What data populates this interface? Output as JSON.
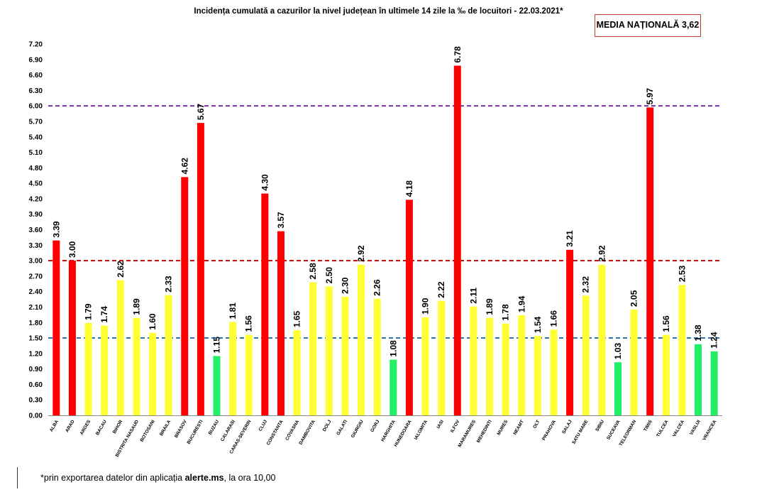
{
  "chart_data": {
    "type": "bar",
    "title": "Incidența cumulată a cazurilor la nivel județean în ultimele 14 zile la ‰ de locuitori - 22.03.2021*",
    "xlabel": "",
    "ylabel": "",
    "ylim": [
      0,
      7.2
    ],
    "yticks": [
      "0.00",
      "0.30",
      "0.60",
      "0.90",
      "1.20",
      "1.50",
      "1.80",
      "2.10",
      "2.40",
      "2.70",
      "3.00",
      "3.30",
      "3.60",
      "3.90",
      "4.20",
      "4.50",
      "4.80",
      "5.10",
      "5.40",
      "5.70",
      "6.00",
      "6.30",
      "6.60",
      "6.90",
      "7.20"
    ],
    "grid": false,
    "categories": [
      "ALBA",
      "ARAD",
      "ARGES",
      "BACAU",
      "BIHOR",
      "BISTRITA NASAUD",
      "BOTOSANI",
      "BRAILA",
      "BRASOV",
      "BUCURESTI",
      "BUZAU",
      "CALARASI",
      "CARAS-SEVERIN",
      "CLUJ",
      "CONSTANTA",
      "COVASNA",
      "DAMBOVITA",
      "DOLJ",
      "GALATI",
      "GIURGIU",
      "GORJ",
      "HARGHITA",
      "HUNEDOARA",
      "IALOMITA",
      "IASI",
      "ILFOV",
      "MARAMURES",
      "MEHEDINTI",
      "MURES",
      "NEAMT",
      "OLT",
      "PRAHOVA",
      "SALAJ",
      "SATU MARE",
      "SIBIU",
      "SUCEAVA",
      "TELEORMAN",
      "TIMIS",
      "TULCEA",
      "VALCEA",
      "VASLUI",
      "VRANCEA"
    ],
    "values": [
      3.39,
      3.0,
      1.79,
      1.74,
      2.62,
      1.89,
      1.6,
      2.33,
      4.62,
      5.67,
      1.15,
      1.81,
      1.56,
      4.3,
      3.57,
      1.65,
      2.58,
      2.5,
      2.3,
      2.92,
      2.26,
      1.08,
      4.18,
      1.9,
      2.22,
      6.78,
      2.11,
      1.89,
      1.78,
      1.94,
      1.54,
      1.66,
      3.21,
      2.32,
      2.92,
      1.03,
      2.05,
      5.97,
      1.56,
      2.53,
      1.38,
      1.24
    ],
    "value_labels": [
      "3.39",
      "3.00",
      "1.79",
      "1.74",
      "2.62",
      "1.89",
      "1.60",
      "2.33",
      "4.62",
      "5.67",
      "1.15",
      "1.81",
      "1.56",
      "4.30",
      "3.57",
      "1.65",
      "2.58",
      "2.50",
      "2.30",
      "2.92",
      "2.26",
      "1.08",
      "4.18",
      "1.90",
      "2.22",
      "6.78",
      "2.11",
      "1.89",
      "1.78",
      "1.94",
      "1.54",
      "1.66",
      "3.21",
      "2.32",
      "2.92",
      "1.03",
      "2.05",
      "5.97",
      "1.56",
      "2.53",
      "1.38",
      "1.24"
    ],
    "thresholds": [
      {
        "value": 6.0,
        "color": "#7030a0",
        "style": "dashed"
      },
      {
        "value": 3.0,
        "color": "#c00000",
        "style": "dashed"
      },
      {
        "value": 1.5,
        "color": "#2e75b6",
        "style": "dashed"
      }
    ],
    "color_rule": {
      "green_below": 1.5,
      "yellow_below": 3.0,
      "red_from": 3.0
    },
    "colors": {
      "red": "#ff0000",
      "yellow": "#ffff33",
      "green": "#22ee66",
      "axis": "#000000",
      "tick_text": "#000000"
    }
  },
  "media_box": "MEDIA NAȚIONALĂ 3,62",
  "footnote": {
    "prefix": "*prin exportarea datelor din aplicația ",
    "link": "alerte.ms",
    "suffix": ", la ora 10,00"
  }
}
